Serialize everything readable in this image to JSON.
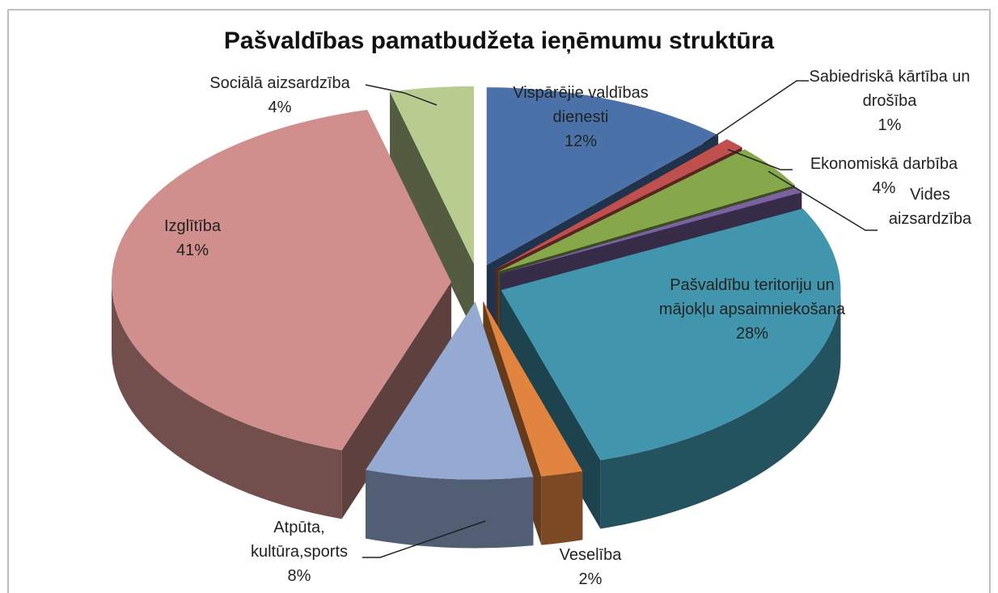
{
  "chart_data": {
    "type": "pie",
    "title": "Pašvaldības pamatbudžeta ieņēmumu struktūra",
    "categories": [
      "Vispārējie valdības dienesti",
      "Sabiedriskā kārtība un drošība",
      "Ekonomiskā darbība",
      "Vides aizsardzība",
      "Pašvaldību teritoriju un mājokļu apsaimniekošana",
      "Veselība",
      "Atpūta, kultūra,sports",
      "Izglītība",
      "Sociālā aizsardzība"
    ],
    "values": [
      12,
      1,
      4,
      0.5,
      28,
      2,
      8,
      41,
      4
    ],
    "value_labels": [
      "12%",
      "1%",
      "4%",
      null,
      "28%",
      "2%",
      "8%",
      "41%",
      "4%"
    ],
    "colors": [
      "#4a72a8",
      "#c0504d",
      "#86a84a",
      "#7b62a0",
      "#4196ae",
      "#e0843f",
      "#94aad2",
      "#d08f8c",
      "#b9cc8f"
    ]
  }
}
